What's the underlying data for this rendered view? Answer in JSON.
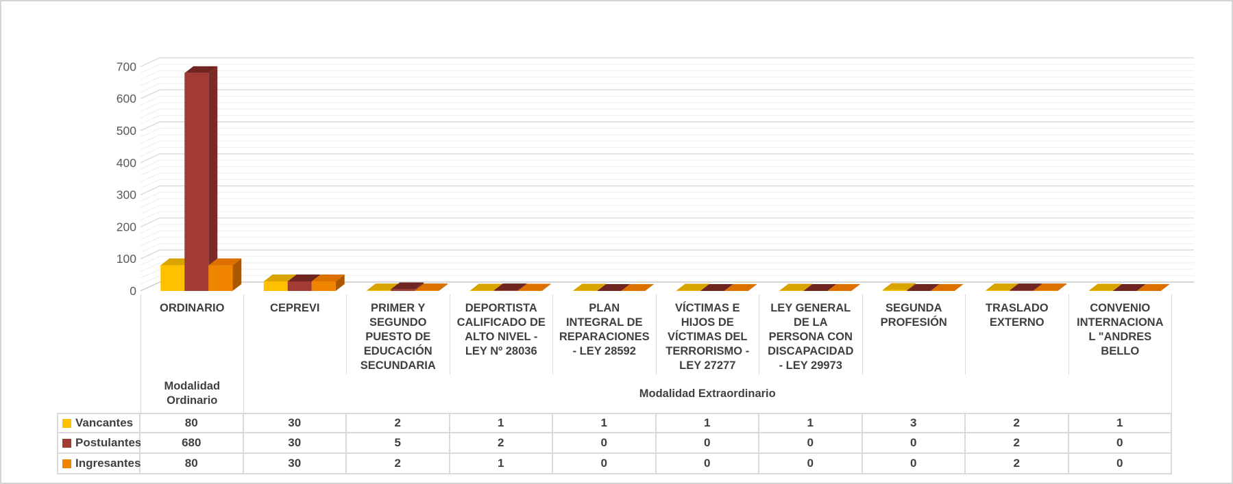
{
  "colors": {
    "grid_major": "#D9D9D9",
    "grid_minor": "#EFEFEF",
    "grid_floor": "#CACACA",
    "axis_text": "#595959",
    "label_text": "#3F3F3F",
    "table_border": "#D9D9D9",
    "frame_border": "#D5D3D3"
  },
  "chart_data": {
    "type": "bar",
    "style": "3d-clustered-column",
    "title": "",
    "grid": true,
    "has_data_table": true,
    "legend_position": "data-table",
    "ylim": [
      0,
      700
    ],
    "y_axis": {
      "min": 0,
      "max": 700,
      "major_unit": 100,
      "minor_unit": 20,
      "tick_labels": [
        "0",
        "100",
        "200",
        "300",
        "400",
        "500",
        "600",
        "700"
      ]
    },
    "categories": [
      "ORDINARIO",
      "CEPREVI",
      "PRIMER Y SEGUNDO PUESTO DE EDUCACIÓN SECUNDARIA",
      "DEPORTISTA CALIFICADO DE ALTO NIVEL - LEY Nº 28036",
      "PLAN INTEGRAL DE REPARACIONES - LEY 28592",
      "VÍCTIMAS E HIJOS DE VÍCTIMAS DEL TERRORISMO - LEY 27277",
      "LEY GENERAL DE LA PERSONA CON DISCAPACIDAD - LEY 29973",
      "SEGUNDA PROFESIÓN",
      "TRASLADO EXTERNO",
      "CONVENIO INTERNACIONAL \"ANDRES BELLO"
    ],
    "category_label_lines": [
      [
        "ORDINARIO"
      ],
      [
        "CEPREVI"
      ],
      [
        "PRIMER Y",
        "SEGUNDO",
        "PUESTO DE",
        "EDUCACIÓN",
        "SECUNDARIA"
      ],
      [
        "DEPORTISTA",
        "CALIFICADO DE",
        "ALTO NIVEL -",
        "LEY Nº 28036"
      ],
      [
        "PLAN",
        "INTEGRAL DE",
        "REPARACIONES",
        "- LEY 28592"
      ],
      [
        "VÍCTIMAS E",
        "HIJOS DE",
        "VÍCTIMAS DEL",
        "TERRORISMO -",
        "LEY 27277"
      ],
      [
        "LEY GENERAL",
        "DE LA",
        "PERSONA CON",
        "DISCAPACIDAD",
        "- LEY 29973"
      ],
      [
        "SEGUNDA",
        "PROFESIÓN"
      ],
      [
        "TRASLADO",
        "EXTERNO"
      ],
      [
        "CONVENIO",
        "INTERNACIONA",
        "L \"ANDRES",
        "BELLO"
      ]
    ],
    "series": [
      {
        "name": "Vancantes",
        "color": "#FFC000",
        "color_top": "#D9A300",
        "color_side": "#A87E00",
        "values": [
          80,
          30,
          2,
          1,
          1,
          1,
          1,
          3,
          2,
          1
        ]
      },
      {
        "name": "Postulantes",
        "color": "#A23B33",
        "color_top": "#702520",
        "color_side": "#7C2A25",
        "values": [
          680,
          30,
          5,
          2,
          0,
          0,
          0,
          0,
          2,
          0
        ]
      },
      {
        "name": "Ingresantes",
        "color": "#F28500",
        "color_top": "#DD7100",
        "color_side": "#AD5800",
        "values": [
          80,
          30,
          2,
          1,
          0,
          0,
          0,
          0,
          2,
          0
        ]
      }
    ],
    "axis_groups": [
      {
        "label": "Modalidad Ordinario",
        "label_lines": [
          "Modalidad",
          "Ordinario"
        ],
        "span": 1
      },
      {
        "label": "Modalidad Extraordinario",
        "label_lines": [
          "Modalidad Extraordinario"
        ],
        "span": 9
      }
    ]
  }
}
